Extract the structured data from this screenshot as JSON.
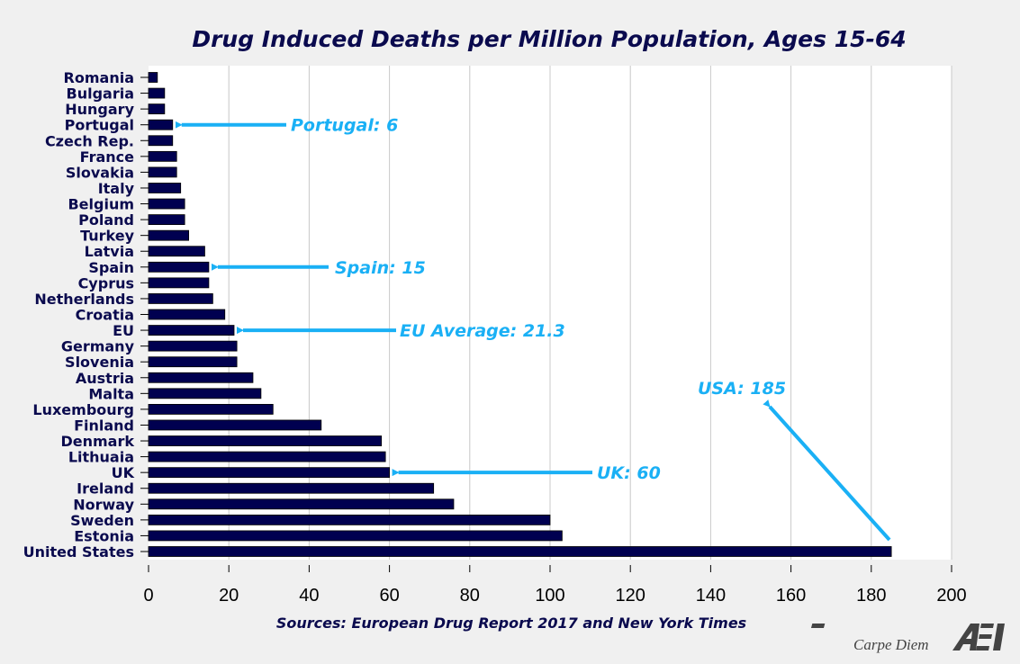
{
  "chart_data": {
    "type": "bar",
    "orientation": "horizontal",
    "title": "Drug Induced Deaths per Million Population, Ages 15-64",
    "categories": [
      "Romania",
      "Bulgaria",
      "Hungary",
      "Portugal",
      "Czech Rep.",
      "France",
      "Slovakia",
      "Italy",
      "Belgium",
      "Poland",
      "Turkey",
      "Latvia",
      "Spain",
      "Cyprus",
      "Netherlands",
      "Croatia",
      "EU",
      "Germany",
      "Slovenia",
      "Austria",
      "Malta",
      "Luxembourg",
      "Finland",
      "Denmark",
      "Lithuaia",
      "UK",
      "Ireland",
      "Norway",
      "Sweden",
      "Estonia",
      "United States"
    ],
    "values": [
      2.2,
      4,
      4,
      6,
      6,
      7,
      7,
      8,
      9,
      9,
      10,
      14,
      15,
      15,
      16,
      19,
      21.3,
      22,
      22,
      26,
      28,
      31,
      43,
      58,
      59,
      60,
      71,
      76,
      100,
      103,
      185
    ],
    "xlim": [
      0,
      200
    ],
    "xticks": [
      0,
      20,
      40,
      60,
      80,
      100,
      120,
      140,
      160,
      180,
      200
    ],
    "grid": "vertical",
    "bar_color": "#000050",
    "annotations": [
      {
        "text": "Portugal: 6",
        "category": "Portugal",
        "value": 6
      },
      {
        "text": "Spain: 15",
        "category": "Spain",
        "value": 15
      },
      {
        "text": "EU Average: 21.3",
        "category": "EU",
        "value": 21.3
      },
      {
        "text": "UK: 60",
        "category": "UK",
        "value": 60
      },
      {
        "text": "USA: 185",
        "category": "United States",
        "value": 185
      }
    ],
    "annotation_color": "#1ab0f5",
    "source": "Sources: European Drug Report 2017 and New York Times"
  },
  "branding": {
    "blog": "Carpe Diem",
    "logo": "AEI"
  }
}
